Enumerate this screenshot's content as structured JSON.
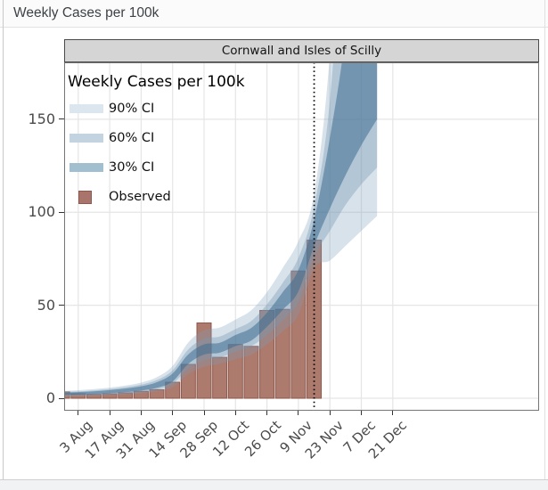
{
  "window": {
    "title": "Weekly Cases per 100k"
  },
  "facet": {
    "title": "Cornwall and Isles of Scilly"
  },
  "legend": {
    "title": "Weekly Cases per 100k",
    "items": [
      {
        "label": "90% CI",
        "type": "band",
        "color": "#dce6ee"
      },
      {
        "label": "60% CI",
        "type": "band",
        "color": "#c3d4e0"
      },
      {
        "label": "30% CI",
        "type": "band",
        "color": "#a2bfcf"
      },
      {
        "label": "Observed",
        "type": "square",
        "color": "#a9746b",
        "border": "#8e584c"
      }
    ]
  },
  "colors": {
    "header_bg": "#fbfbfb",
    "header_text": "#3d4247",
    "facet_bg": "#d5d5d5",
    "facet_border": "#4a4a4a",
    "panel_border": "#757575",
    "grid": "#e5e5e5",
    "axis_text": "#4a4a4a",
    "bar_fill": "#ad7a6e",
    "bar_stroke": "#8e584c",
    "ribbon_90": "rgba(125,158,186,0.30)",
    "ribbon_60": "rgba(118,152,182,0.38)",
    "ribbon_30": "rgba(62,110,146,0.55)",
    "forecast_line": "#000000"
  },
  "chart_data": {
    "type": "bar+area",
    "title": "Cornwall and Isles of Scilly",
    "ylabel": "Weekly Cases per 100k",
    "ylim": [
      0,
      180
    ],
    "grid": true,
    "legend_position": "top-left inside panel",
    "dates": [
      "27 Jul",
      "3 Aug",
      "10 Aug",
      "17 Aug",
      "24 Aug",
      "31 Aug",
      "7 Sep",
      "14 Sep",
      "21 Sep",
      "28 Sep",
      "5 Oct",
      "12 Oct",
      "19 Oct",
      "26 Oct",
      "2 Nov",
      "9 Nov",
      "16 Nov",
      "23 Nov",
      "30 Nov",
      "7 Dec",
      "14 Dec"
    ],
    "observed": {
      "name": "Observed weekly cases per 100k (bars)",
      "dates": [
        "27 Jul",
        "3 Aug",
        "10 Aug",
        "17 Aug",
        "24 Aug",
        "31 Aug",
        "7 Sep",
        "14 Sep",
        "21 Sep",
        "28 Sep",
        "5 Oct",
        "12 Oct",
        "19 Oct",
        "26 Oct",
        "2 Nov",
        "9 Nov",
        "16 Nov"
      ],
      "values": [
        3.4,
        2.4,
        2.1,
        2.4,
        2.9,
        3.7,
        4.6,
        8.6,
        18.2,
        40.5,
        22.0,
        28.9,
        27.9,
        47.2,
        47.8,
        68.4,
        85.0
      ]
    },
    "ribbon": {
      "name": "Model fit and forecast credible intervals",
      "lo90": [
        1.0,
        1.2,
        1.4,
        1.7,
        2.1,
        2.7,
        3.7,
        6.0,
        13.0,
        17.0,
        18.5,
        21.0,
        23.5,
        29.0,
        36.0,
        45.0,
        70.0,
        74.0,
        82.0,
        90.0,
        98.0
      ],
      "lo60": [
        1.4,
        1.6,
        1.9,
        2.3,
        2.8,
        3.5,
        4.8,
        7.8,
        16.0,
        20.5,
        22.0,
        25.0,
        28.0,
        34.0,
        42.0,
        52.0,
        76.0,
        90.0,
        104.0,
        115.0,
        124.0
      ],
      "lo30": [
        1.8,
        2.0,
        2.3,
        2.7,
        3.3,
        4.1,
        5.6,
        9.0,
        18.5,
        23.5,
        24.5,
        28.0,
        31.0,
        38.5,
        47.5,
        57.5,
        82.0,
        102.0,
        120.0,
        136.0,
        150.0
      ],
      "hi30": [
        3.0,
        3.3,
        3.7,
        4.4,
        5.2,
        6.4,
        8.6,
        13.3,
        23.6,
        29.0,
        29.8,
        34.0,
        37.8,
        46.0,
        57.0,
        69.0,
        96.0,
        140.0,
        196.0,
        280.0,
        400.0
      ],
      "hi60": [
        3.4,
        3.7,
        4.2,
        4.9,
        5.9,
        7.3,
        9.8,
        15.0,
        26.3,
        32.0,
        33.2,
        37.2,
        41.5,
        50.5,
        62.0,
        75.5,
        103.0,
        160.0,
        280.0,
        430.0,
        650.0
      ],
      "hi90": [
        3.9,
        4.3,
        4.9,
        5.7,
        6.8,
        8.4,
        11.3,
        17.3,
        30.0,
        36.5,
        38.0,
        42.3,
        47.3,
        57.0,
        70.0,
        84.5,
        110.0,
        185.0,
        330.0,
        550.0,
        850.0
      ]
    },
    "forecast_start": "16 Nov",
    "axes": {
      "y_ticks": [
        0,
        50,
        100,
        150
      ],
      "x_tick_labels": [
        "3 Aug",
        "17 Aug",
        "31 Aug",
        "14 Sep",
        "28 Sep",
        "12 Oct",
        "26 Oct",
        "9 Nov",
        "23 Nov",
        "7 Dec",
        "21 Dec"
      ],
      "x_tick_weeks": [
        1,
        3,
        5,
        7,
        9,
        11,
        13,
        15,
        17,
        19,
        21
      ]
    }
  }
}
